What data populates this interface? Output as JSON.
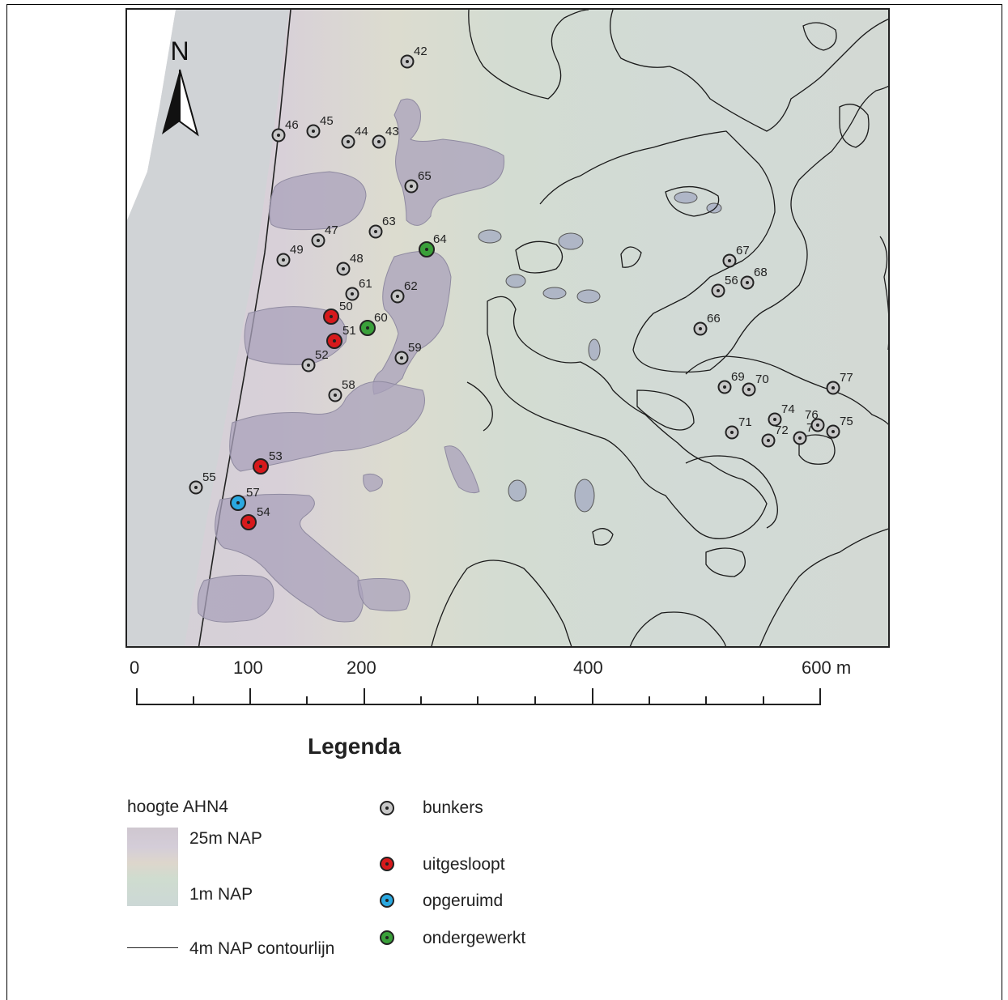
{
  "map": {
    "bunkers": [
      {
        "id": "42",
        "status": "bunkers"
      },
      {
        "id": "43",
        "status": "bunkers"
      },
      {
        "id": "44",
        "status": "bunkers"
      },
      {
        "id": "45",
        "status": "bunkers"
      },
      {
        "id": "46",
        "status": "bunkers"
      },
      {
        "id": "47",
        "status": "bunkers"
      },
      {
        "id": "48",
        "status": "bunkers"
      },
      {
        "id": "49",
        "status": "bunkers"
      },
      {
        "id": "50",
        "status": "uitgesloopt"
      },
      {
        "id": "51",
        "status": "uitgesloopt"
      },
      {
        "id": "52",
        "status": "bunkers"
      },
      {
        "id": "53",
        "status": "uitgesloopt"
      },
      {
        "id": "54",
        "status": "uitgesloopt"
      },
      {
        "id": "55",
        "status": "bunkers"
      },
      {
        "id": "56",
        "status": "bunkers"
      },
      {
        "id": "57",
        "status": "opgeruimd"
      },
      {
        "id": "58",
        "status": "bunkers"
      },
      {
        "id": "59",
        "status": "bunkers"
      },
      {
        "id": "60",
        "status": "ondergewerkt"
      },
      {
        "id": "61",
        "status": "bunkers"
      },
      {
        "id": "62",
        "status": "bunkers"
      },
      {
        "id": "63",
        "status": "bunkers"
      },
      {
        "id": "64",
        "status": "ondergewerkt"
      },
      {
        "id": "65",
        "status": "bunkers"
      },
      {
        "id": "66",
        "status": "bunkers"
      },
      {
        "id": "67",
        "status": "bunkers"
      },
      {
        "id": "68",
        "status": "bunkers"
      },
      {
        "id": "69",
        "status": "bunkers"
      },
      {
        "id": "70",
        "status": "bunkers"
      },
      {
        "id": "71",
        "status": "bunkers"
      },
      {
        "id": "72",
        "status": "bunkers"
      },
      {
        "id": "73",
        "status": "bunkers"
      },
      {
        "id": "74",
        "status": "bunkers"
      },
      {
        "id": "75",
        "status": "bunkers"
      },
      {
        "id": "76",
        "status": "bunkers"
      },
      {
        "id": "77",
        "status": "bunkers"
      }
    ],
    "status_colors": {
      "bunkers": "#c8c8c8",
      "uitgesloopt": "#d7191c",
      "opgeruimd": "#2aa8e0",
      "ondergewerkt": "#3aa03a"
    }
  },
  "north_arrow": {
    "label": "N"
  },
  "scale_bar": {
    "labels": [
      "0",
      "100",
      "200",
      "400",
      "600 m"
    ]
  },
  "legend": {
    "title": "Legenda",
    "elevation_title": "hoogte AHN4",
    "elevation_high": "25m NAP",
    "elevation_low": "1m NAP",
    "contour_label": "4m NAP contourlijn",
    "items": [
      {
        "label": "bunkers",
        "status": "bunkers"
      },
      {
        "label": "uitgesloopt",
        "status": "uitgesloopt"
      },
      {
        "label": "opgeruimd",
        "status": "opgeruimd"
      },
      {
        "label": "ondergewerkt",
        "status": "ondergewerkt"
      }
    ]
  }
}
